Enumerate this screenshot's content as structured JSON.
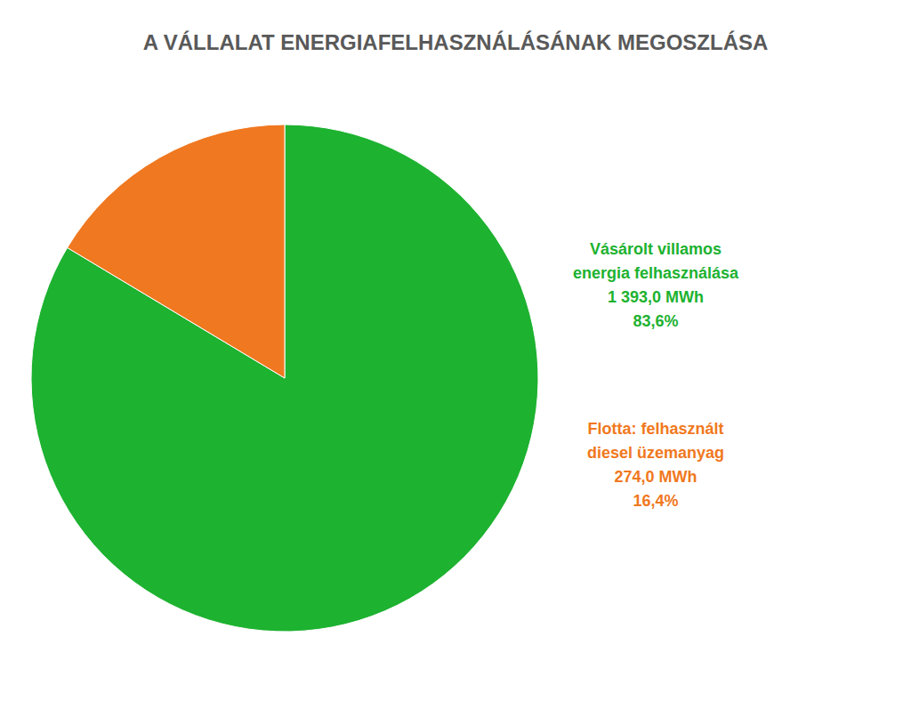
{
  "chart_data": {
    "type": "pie",
    "title": "A VÁLLALAT ENERGIAFELHASZNÁLÁSÁNAK MEGOSZLÁSA",
    "categories": [
      "Vásárolt villamos\nenergia felhasználása",
      "Flotta: felhasznált\ndiesel üzemanyag"
    ],
    "values": [
      83.6,
      16.4
    ],
    "value_labels": [
      "83,6%",
      "16,4%"
    ],
    "energy": [
      {
        "value": 1393.0,
        "label": "1 393,0 MWh"
      },
      {
        "value": 274.0,
        "label": "274,0 MWh"
      }
    ],
    "colors": [
      "#1db230",
      "#f07820"
    ],
    "data_labels": true
  }
}
